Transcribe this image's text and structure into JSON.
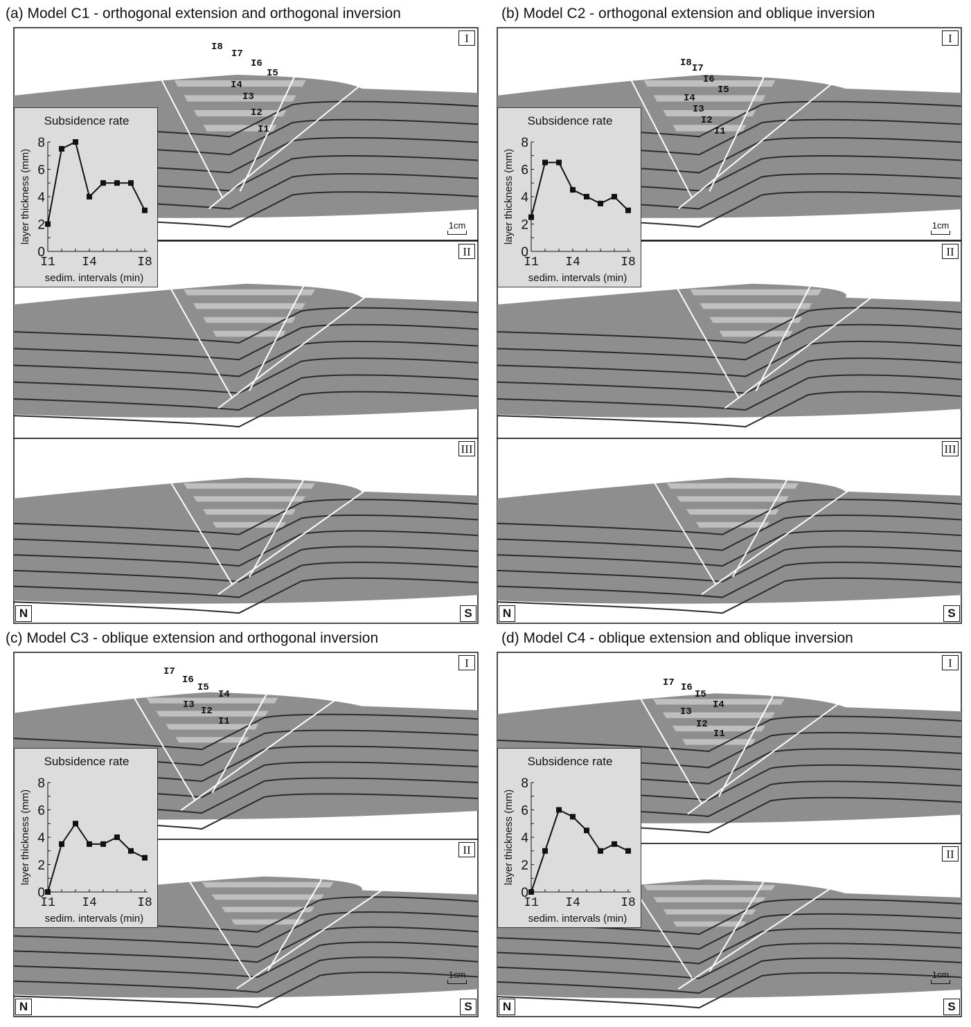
{
  "panels": [
    {
      "id": "a",
      "title": "(a) Model C1 - orthogonal extension and orthogonal inversion",
      "sections": [
        "I",
        "II",
        "III"
      ],
      "intervals": [
        "I8",
        "I7",
        "I6",
        "I5",
        "I4",
        "I3",
        "I2",
        "I1"
      ],
      "north": "N",
      "south": "S",
      "scale": "1cm"
    },
    {
      "id": "b",
      "title": "(b) Model C2 - orthogonal extension and oblique inversion",
      "sections": [
        "I",
        "II",
        "III"
      ],
      "intervals": [
        "I8",
        "I7",
        "I6",
        "I5",
        "I4",
        "I3",
        "I2",
        "I1"
      ],
      "north": "N",
      "south": "S",
      "scale": "1cm"
    },
    {
      "id": "c",
      "title": "(c) Model C3 - oblique extension and orthogonal inversion",
      "sections": [
        "I",
        "II"
      ],
      "intervals": [
        "I7",
        "I6",
        "I5",
        "I4",
        "I3",
        "I2",
        "I1"
      ],
      "north": "N",
      "south": "S",
      "scale": "1cm"
    },
    {
      "id": "d",
      "title": "(d) Model C4 - oblique extension and oblique inversion",
      "sections": [
        "I",
        "II"
      ],
      "intervals": [
        "I7",
        "I6",
        "I5",
        "I4",
        "I3",
        "I2",
        "I1"
      ],
      "north": "N",
      "south": "S",
      "scale": "1cm"
    }
  ],
  "chart_data": [
    {
      "panel": "a",
      "type": "line",
      "title": "Subsidence rate",
      "xlabel": "sedim. intervals (min)",
      "ylabel": "layer thickness (mm)",
      "categories": [
        "I1",
        "I2",
        "I3",
        "I4",
        "I5",
        "I6",
        "I7",
        "I8"
      ],
      "x_tick_labels": [
        "I1",
        "I4",
        "I8"
      ],
      "y_ticks": [
        "0",
        "2",
        "4",
        "6",
        "8"
      ],
      "ylim": [
        0,
        8
      ],
      "values": [
        2,
        7.5,
        8,
        4,
        5,
        5,
        5,
        3
      ],
      "marker": "square",
      "grid": false
    },
    {
      "panel": "b",
      "type": "line",
      "title": "Subsidence rate",
      "xlabel": "sedim. intervals (min)",
      "ylabel": "layer thickness (mm)",
      "categories": [
        "I1",
        "I2",
        "I3",
        "I4",
        "I5",
        "I6",
        "I7",
        "I8"
      ],
      "x_tick_labels": [
        "I1",
        "I4",
        "I8"
      ],
      "y_ticks": [
        "0",
        "2",
        "4",
        "6",
        "8"
      ],
      "ylim": [
        0,
        8
      ],
      "values": [
        2.5,
        6.5,
        6.5,
        4.5,
        4,
        3.5,
        4,
        3
      ],
      "marker": "square",
      "grid": false
    },
    {
      "panel": "c",
      "type": "line",
      "title": "Subsidence rate",
      "xlabel": "sedim. intervals (min)",
      "ylabel": "layer thickness (mm)",
      "categories": [
        "I1",
        "I2",
        "I3",
        "I4",
        "I5",
        "I6",
        "I7",
        "I8"
      ],
      "x_tick_labels": [
        "I1",
        "I4",
        "I8"
      ],
      "y_ticks": [
        "0",
        "2",
        "4",
        "6",
        "8"
      ],
      "ylim": [
        0,
        8
      ],
      "values": [
        0,
        3.5,
        5,
        3.5,
        3.5,
        4,
        3,
        2.5
      ],
      "marker": "square",
      "grid": false
    },
    {
      "panel": "d",
      "type": "line",
      "title": "Subsidence rate",
      "xlabel": "sedim. intervals (min)",
      "ylabel": "layer thickness (mm)",
      "categories": [
        "I1",
        "I2",
        "I3",
        "I4",
        "I5",
        "I6",
        "I7",
        "I8"
      ],
      "x_tick_labels": [
        "I1",
        "I4",
        "I8"
      ],
      "y_ticks": [
        "0",
        "2",
        "4",
        "6",
        "8"
      ],
      "ylim": [
        0,
        8
      ],
      "values": [
        0,
        3,
        6,
        5.5,
        4.5,
        3,
        3.5,
        3
      ],
      "marker": "square",
      "grid": false
    }
  ],
  "colors": {
    "sand": "#8e8e8e",
    "layer_line": "#2a2a2a",
    "fault": "#ffffff",
    "syn_band": "#c8c8c8",
    "inset_bg": "#dcdcdc"
  }
}
